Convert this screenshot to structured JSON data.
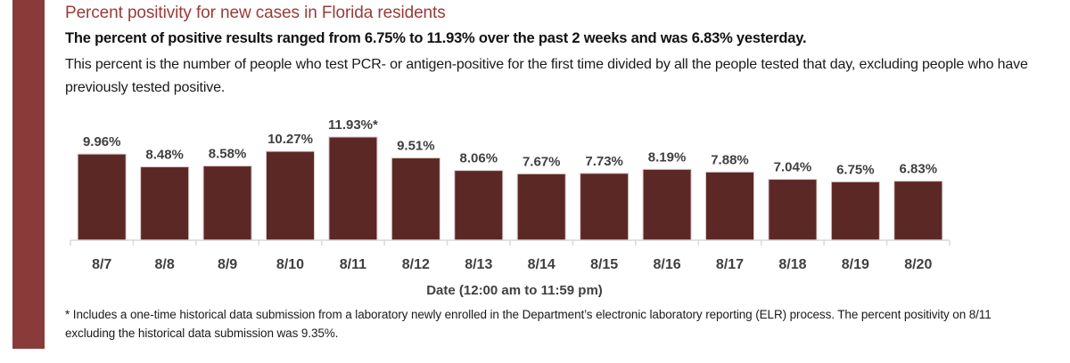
{
  "header": {
    "title": "Percent positivity for new cases in Florida residents",
    "subtitle": "The percent of positive results ranged from 6.75% to 11.93% over the past 2 weeks and was 6.83% yesterday.",
    "description": "This percent is the number of people who test PCR- or antigen-positive for the first time divided by all the people tested that day, excluding people who have previously tested positive."
  },
  "footnote": "* Includes a one-time historical data submission from a laboratory newly enrolled in the Department’s electronic laboratory reporting (ELR) process. The percent positivity on 8/11 excluding the historical data submission was 9.35%.",
  "colors": {
    "accent_bar": "#8b3a3a",
    "title": "#993b37",
    "bar_fill": "#5c2826"
  },
  "chart_data": {
    "type": "bar",
    "title": "Percent positivity for new cases in Florida residents",
    "xlabel": "Date (12:00 am to 11:59 pm)",
    "ylabel": "",
    "categories": [
      "8/7",
      "8/8",
      "8/9",
      "8/10",
      "8/11",
      "8/12",
      "8/13",
      "8/14",
      "8/15",
      "8/16",
      "8/17",
      "8/18",
      "8/19",
      "8/20"
    ],
    "values": [
      9.96,
      8.48,
      8.58,
      10.27,
      11.93,
      9.51,
      8.06,
      7.67,
      7.73,
      8.19,
      7.88,
      7.04,
      6.75,
      6.83
    ],
    "data_labels": [
      "9.96%",
      "8.48%",
      "8.58%",
      "10.27%",
      "11.93%*",
      "9.51%",
      "8.06%",
      "7.67%",
      "7.73%",
      "8.19%",
      "7.88%",
      "7.04%",
      "6.75%",
      "6.83%"
    ],
    "ylim": [
      0,
      12
    ],
    "grid": false,
    "legend": "none",
    "y_axis_visible": false
  }
}
